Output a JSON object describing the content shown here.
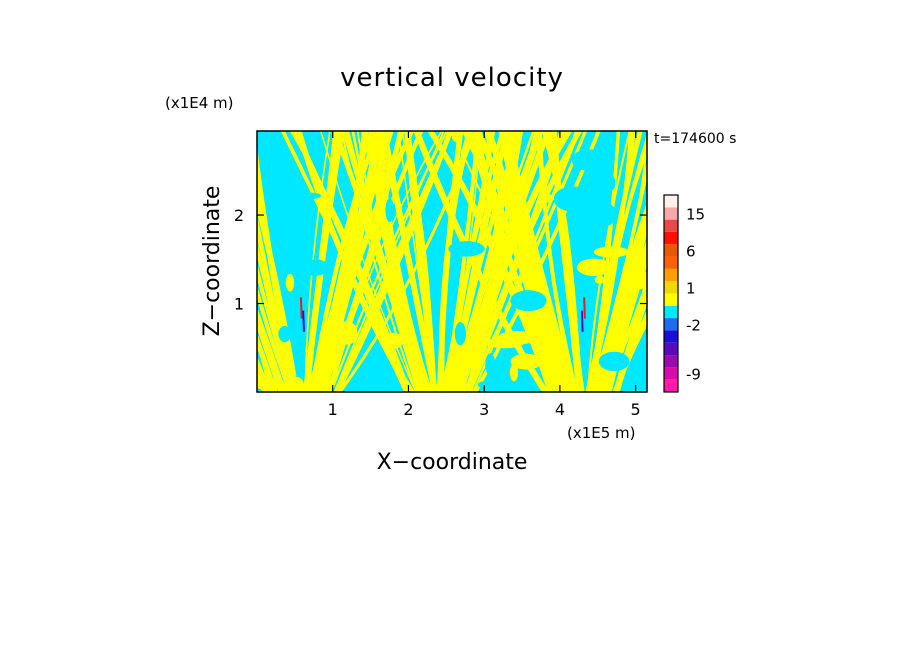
{
  "chart_data": {
    "type": "heatmap",
    "title": "vertical velocity",
    "time_label": "t=174600 s",
    "xlabel": "X−coordinate",
    "ylabel": "Z−coordinate",
    "x_unit": "(x1E5 m)",
    "y_unit": "(x1E4 m)",
    "xlim": [
      0,
      5.15
    ],
    "ylim": [
      0,
      2.95
    ],
    "x_ticks": [
      {
        "value": 1,
        "label": "1"
      },
      {
        "value": 2,
        "label": "2"
      },
      {
        "value": 3,
        "label": "3"
      },
      {
        "value": 4,
        "label": "4"
      },
      {
        "value": 5,
        "label": "5"
      }
    ],
    "y_ticks": [
      {
        "value": 1,
        "label": "1"
      },
      {
        "value": 2,
        "label": "2"
      }
    ],
    "colorbar": {
      "levels": [
        {
          "label": "",
          "color": "#ff1aa8"
        },
        {
          "label": "-9",
          "color": "#d80cac"
        },
        {
          "label": "",
          "color": "#9b0cb0"
        },
        {
          "label": "",
          "color": "#5a0ab8"
        },
        {
          "label": "",
          "color": "#1a10d0"
        },
        {
          "label": "-2",
          "color": "#1e6cf0"
        },
        {
          "label": "",
          "color": "#00e8ff"
        },
        {
          "label": "",
          "color": "#ffff00"
        },
        {
          "label": "1",
          "color": "#f0d800"
        },
        {
          "label": "",
          "color": "#ffa000"
        },
        {
          "label": "",
          "color": "#ff6000"
        },
        {
          "label": "6",
          "color": "#e85a00"
        },
        {
          "label": "",
          "color": "#ff1000"
        },
        {
          "label": "",
          "color": "#e84a4a"
        },
        {
          "label": "15",
          "color": "#f5a8a8"
        },
        {
          "label": "",
          "color": "#fff0ec"
        }
      ]
    },
    "field_colors": {
      "positive": "#ffff00",
      "negative": "#00e8ff",
      "strong_positive": "#e8201a",
      "strong_negative": "#2a14c8"
    }
  }
}
